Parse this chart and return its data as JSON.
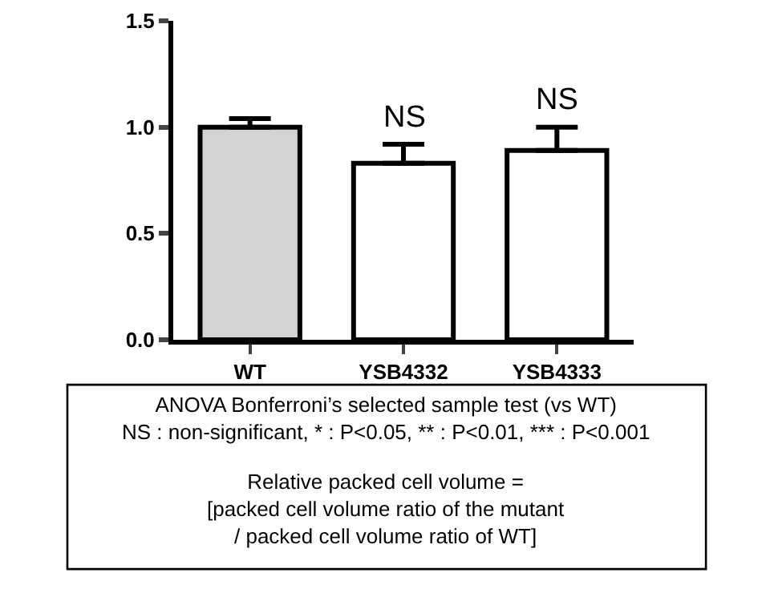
{
  "chart_data": {
    "type": "bar",
    "categories": [
      "WT",
      "YSB4332",
      "YSB4333"
    ],
    "values": [
      1.0,
      0.83,
      0.89
    ],
    "colors": [
      "#d3d3d3",
      "#ffffff",
      "#ffffff"
    ],
    "errors": [
      [
        1.0,
        1.04
      ],
      [
        0.83,
        0.92
      ],
      [
        0.89,
        1.0
      ]
    ],
    "ylim": [
      0,
      1.5
    ],
    "yticks": [
      {
        "value": 0,
        "label": "0.0"
      },
      {
        "value": 0.5,
        "label": "0.5"
      },
      {
        "value": 1,
        "label": "1.0"
      },
      1.5
    ],
    "annotations": [
      {
        "text": "NS",
        "x": "YSB4332",
        "y": 0.92
      },
      {
        "text": "NS",
        "x": "YSB4333",
        "y": 1.0
      },
      "ANOVA Bonferroni’s selected sample test (vs WT)\nNS : non-significant, * : P<0.05, ** : P<0.01, *** : P<0.001",
      "Relative packed cell volume =\n[packed cell volume ratio of the mutant\n/ packed cell volume ratio of WT]"
    ]
  }
}
